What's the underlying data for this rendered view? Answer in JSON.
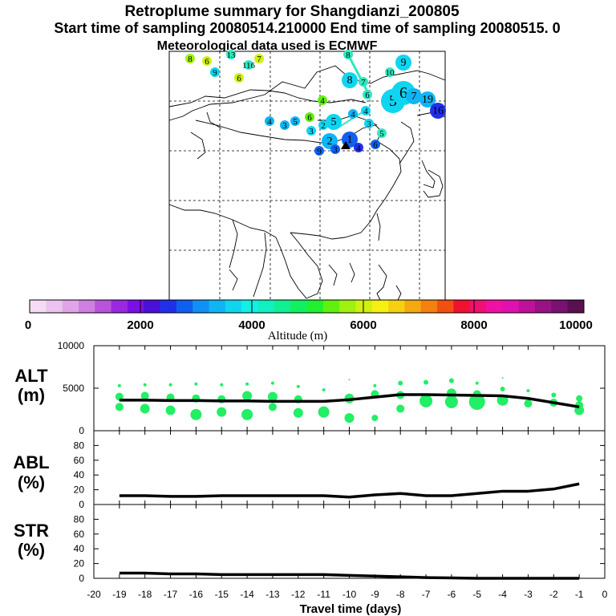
{
  "header": {
    "title": "Retroplume summary for Shangdianzi_200805",
    "subtitle": "Start time of sampling 20080514.210000     End time of sampling 20080515.      0",
    "met": "Meteorological data used is ECMWF"
  },
  "colorbar": {
    "ticks": [
      "0",
      "2000",
      "4000",
      "6000",
      "8000",
      "10000"
    ],
    "label": "Altitude  (m)",
    "colors": [
      "#f5dcf5",
      "#ecc3ee",
      "#e0a5e8",
      "#cf7fe0",
      "#b953dc",
      "#9b28e0",
      "#7a10e6",
      "#4b10d8",
      "#2030e8",
      "#1060f0",
      "#1090f5",
      "#10b5f5",
      "#10d5f0",
      "#10f0e5",
      "#10f0c0",
      "#10f090",
      "#10f060",
      "#20f030",
      "#60f010",
      "#a0f010",
      "#d0f010",
      "#f5f010",
      "#f5d010",
      "#f5a810",
      "#f58010",
      "#f05010",
      "#f01030",
      "#f0106f",
      "#f010a5",
      "#e010b0",
      "#c0109a",
      "#9a1085",
      "#7a106f",
      "#5a1050"
    ]
  },
  "map": {
    "markers": [
      {
        "t": "8",
        "c": "#a0f010",
        "s": "sm"
      },
      {
        "t": "6",
        "c": "#d0f010",
        "s": "sm"
      },
      {
        "t": "13",
        "c": "#30e8c0",
        "s": "sm"
      },
      {
        "t": "7",
        "c": "#d0f010",
        "s": "sm"
      },
      {
        "t": "116",
        "c": "#30e8c0",
        "s": "sm"
      },
      {
        "t": "9",
        "c": "#10d5f0",
        "s": "sm"
      },
      {
        "t": "6",
        "c": "#d0f010",
        "s": "sm"
      },
      {
        "t": "8",
        "c": "#30e8c0",
        "s": "sm"
      },
      {
        "t": "9",
        "c": "#10d5f0",
        "s": "md"
      },
      {
        "t": "10",
        "c": "#30e8c0",
        "s": "sm"
      },
      {
        "t": "8",
        "c": "#10d5f0",
        "s": "md"
      },
      {
        "t": "7",
        "c": "#30e8c0",
        "s": "sm"
      },
      {
        "t": "6",
        "c": "#30e8c0",
        "s": "sm"
      },
      {
        "t": "5",
        "c": "#10d5f0",
        "s": "lg"
      },
      {
        "t": "6",
        "c": "#10d5f0",
        "s": "lg"
      },
      {
        "t": "7",
        "c": "#10b5f5",
        "s": "md"
      },
      {
        "t": "19",
        "c": "#10b5f5",
        "s": "md"
      },
      {
        "t": "16",
        "c": "#2030e8",
        "s": "md"
      },
      {
        "t": "4",
        "c": "#60f010",
        "s": "sm"
      },
      {
        "t": "4",
        "c": "#10d5f0",
        "s": "sm"
      },
      {
        "t": "4",
        "c": "#10b5f5",
        "s": "sm"
      },
      {
        "t": "3",
        "c": "#10d5f0",
        "s": "sm"
      },
      {
        "t": "5",
        "c": "#30e8c0",
        "s": "sm"
      },
      {
        "t": "4",
        "c": "#10b5f5",
        "s": "sm"
      },
      {
        "t": "3",
        "c": "#10b5f5",
        "s": "sm"
      },
      {
        "t": "5",
        "c": "#10b5f5",
        "s": "sm"
      },
      {
        "t": "6",
        "c": "#60f010",
        "s": "sm"
      },
      {
        "t": "3",
        "c": "#10d5f0",
        "s": "sm"
      },
      {
        "t": "2",
        "c": "#10d5f0",
        "s": "sm"
      },
      {
        "t": "5",
        "c": "#10d5f0",
        "s": "md"
      },
      {
        "t": "2",
        "c": "#10b5f5",
        "s": "md"
      },
      {
        "t": "1",
        "c": "#1060f0",
        "s": "md"
      },
      {
        "t": "4",
        "c": "#2030e8",
        "s": "sm"
      },
      {
        "t": "6",
        "c": "#1060f0",
        "s": "sm"
      },
      {
        "t": "9",
        "c": "#1060f0",
        "s": "sm"
      },
      {
        "t": "3",
        "c": "#1060f0",
        "s": "sm"
      }
    ]
  },
  "chart_data": [
    {
      "type": "scatter",
      "title": "ALT (m)",
      "ylabel": "ALT (m)",
      "ylim": [
        0,
        10000
      ],
      "yticks": [
        "10000",
        "5000",
        "0"
      ],
      "xlim": [
        -20,
        0
      ],
      "mean_line": {
        "x": [
          -19,
          -18,
          -17,
          -16,
          -15,
          -14,
          -13,
          -12,
          -11,
          -10,
          -9,
          -8,
          -7,
          -6,
          -5,
          -4,
          -3,
          -2,
          -1
        ],
        "y": [
          3600,
          3600,
          3550,
          3550,
          3500,
          3500,
          3450,
          3450,
          3450,
          3650,
          3950,
          4250,
          4250,
          4200,
          4150,
          4100,
          3800,
          3300,
          2800
        ]
      },
      "plume_points": [
        {
          "x": -19,
          "y": [
            5300,
            4000,
            2800
          ],
          "r": [
            2,
            5,
            5
          ]
        },
        {
          "x": -18,
          "y": [
            5400,
            4100,
            2600
          ],
          "r": [
            2,
            5,
            6
          ]
        },
        {
          "x": -17,
          "y": [
            5400,
            3900,
            2400
          ],
          "r": [
            2,
            5,
            6
          ]
        },
        {
          "x": -16,
          "y": [
            5500,
            3800,
            1900
          ],
          "r": [
            2,
            5,
            7
          ]
        },
        {
          "x": -15,
          "y": [
            5400,
            3700,
            2200
          ],
          "r": [
            2,
            5,
            6
          ]
        },
        {
          "x": -14,
          "y": [
            5500,
            4100,
            1900
          ],
          "r": [
            2,
            6,
            7
          ]
        },
        {
          "x": -13,
          "y": [
            5600,
            4000,
            2800
          ],
          "r": [
            2,
            6,
            5
          ]
        },
        {
          "x": -12,
          "y": [
            5200,
            3700,
            2100
          ],
          "r": [
            2,
            5,
            6
          ]
        },
        {
          "x": -11,
          "y": [
            4800,
            2200
          ],
          "r": [
            2,
            7
          ]
        },
        {
          "x": -10,
          "y": [
            6000,
            3800,
            1500
          ],
          "r": [
            1,
            6,
            6
          ]
        },
        {
          "x": -9,
          "y": [
            5300,
            4300,
            1500
          ],
          "r": [
            2,
            5,
            4
          ]
        },
        {
          "x": -8,
          "y": [
            5600,
            4200,
            2600
          ],
          "r": [
            3,
            5,
            5
          ]
        },
        {
          "x": -7,
          "y": [
            5700,
            3500
          ],
          "r": [
            3,
            8
          ]
        },
        {
          "x": -6,
          "y": [
            5900,
            4400,
            3400
          ],
          "r": [
            3,
            6,
            8
          ]
        },
        {
          "x": -5,
          "y": [
            5600,
            4300,
            3400
          ],
          "r": [
            2,
            5,
            10
          ]
        },
        {
          "x": -4,
          "y": [
            6200,
            4900,
            3600
          ],
          "r": [
            1,
            3,
            7
          ]
        },
        {
          "x": -3,
          "y": [
            4700,
            3200
          ],
          "r": [
            2,
            5
          ]
        },
        {
          "x": -2,
          "y": [
            4200,
            3300
          ],
          "r": [
            3,
            5
          ]
        },
        {
          "x": -1,
          "y": [
            3800,
            3000,
            2400
          ],
          "r": [
            4,
            5,
            6
          ]
        }
      ]
    },
    {
      "type": "line",
      "title": "ABL (%)",
      "ylabel": "ABL (%)",
      "ylim": [
        0,
        100
      ],
      "yticks": [
        "80",
        "60",
        "40",
        "20",
        "0"
      ],
      "x": [
        -19,
        -18,
        -17,
        -16,
        -15,
        -14,
        -13,
        -12,
        -11,
        -10,
        -9,
        -8,
        -7,
        -6,
        -5,
        -4,
        -3,
        -2,
        -1
      ],
      "y": [
        12,
        12,
        11,
        11,
        12,
        12,
        12,
        12,
        12,
        10,
        13,
        15,
        12,
        12,
        15,
        18,
        18,
        21,
        28
      ]
    },
    {
      "type": "line",
      "title": "STR (%)",
      "ylabel": "STR (%)",
      "ylim": [
        0,
        100
      ],
      "yticks": [
        "80",
        "60",
        "40",
        "20",
        "0"
      ],
      "xlabel": "Travel time (days)",
      "xticks": [
        "-20",
        "-19",
        "-18",
        "-17",
        "-16",
        "-15",
        "-14",
        "-13",
        "-12",
        "-11",
        "-10",
        "-9",
        "-8",
        "-7",
        "-6",
        "-5",
        "-4",
        "-3",
        "-2",
        "-1",
        "0"
      ],
      "x": [
        -19,
        -18,
        -17,
        -16,
        -15,
        -14,
        -13,
        -12,
        -11,
        -10,
        -9,
        -8,
        -7,
        -6,
        -5,
        -4,
        -3,
        -2,
        -1
      ],
      "y": [
        7,
        7,
        6,
        6,
        5,
        5,
        5,
        5,
        5,
        4,
        3,
        2,
        1,
        0.5,
        0,
        0,
        0,
        0,
        0
      ]
    }
  ],
  "labels": {
    "alt_line1": "ALT",
    "alt_line2": "(m)",
    "abl_line1": "ABL",
    "abl_line2": "(%)",
    "str_line1": "STR",
    "str_line2": "(%)"
  }
}
